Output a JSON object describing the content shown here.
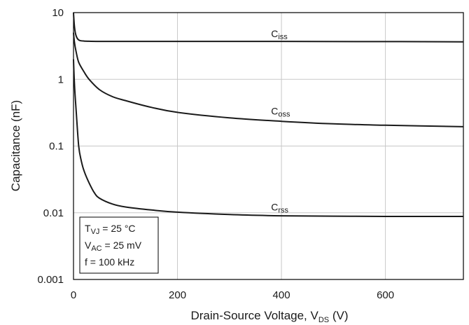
{
  "chart_data": {
    "type": "line",
    "xlabel": {
      "main": "Drain-Source Voltage, V",
      "sub": "DS",
      "suffix": " (V)"
    },
    "ylabel": "Capacitance (nF)",
    "xlim": [
      0,
      750
    ],
    "ylim": [
      0.001,
      10
    ],
    "yscale": "log",
    "grid": true,
    "legend": "inline",
    "x_ticks": [
      0,
      200,
      400,
      600
    ],
    "x_tick_labels": [
      "0",
      "200",
      "400",
      "600"
    ],
    "y_ticks": [
      0.001,
      0.01,
      0.1,
      1,
      10
    ],
    "y_tick_labels": [
      "0.001",
      "0.01",
      "0.1",
      "1",
      "10"
    ],
    "series": [
      {
        "name": "C",
        "sub": "iss",
        "label_at": [
          380,
          3.9
        ],
        "x": [
          0,
          2,
          5,
          10,
          20,
          50,
          100,
          200,
          400,
          600,
          750
        ],
        "y": [
          10,
          6,
          4.5,
          3.9,
          3.75,
          3.7,
          3.7,
          3.7,
          3.7,
          3.68,
          3.65
        ]
      },
      {
        "name": "C",
        "sub": "oss",
        "label_at": [
          380,
          0.27
        ],
        "x": [
          0,
          2,
          5,
          10,
          20,
          30,
          50,
          75,
          100,
          150,
          200,
          300,
          400,
          500,
          600,
          750
        ],
        "y": [
          5,
          3.5,
          2.6,
          1.8,
          1.3,
          1.0,
          0.7,
          0.55,
          0.48,
          0.38,
          0.32,
          0.265,
          0.235,
          0.215,
          0.205,
          0.195
        ]
      },
      {
        "name": "C",
        "sub": "rss",
        "label_at": [
          380,
          0.0098
        ],
        "x": [
          0,
          2,
          5,
          10,
          15,
          20,
          30,
          40,
          50,
          75,
          100,
          150,
          200,
          300,
          400,
          500,
          600,
          750
        ],
        "y": [
          2.0,
          0.8,
          0.35,
          0.1,
          0.06,
          0.043,
          0.028,
          0.02,
          0.0165,
          0.0135,
          0.0122,
          0.011,
          0.0102,
          0.0094,
          0.009,
          0.0089,
          0.0088,
          0.0088
        ]
      }
    ],
    "annotation": {
      "lines": [
        {
          "pre": "T",
          "sub": "VJ",
          "post": " = 25 °C"
        },
        {
          "pre": "V",
          "sub": "AC",
          "post": " = 25 mV"
        },
        {
          "pre": "f = 100 kHz",
          "sub": "",
          "post": ""
        }
      ]
    }
  }
}
